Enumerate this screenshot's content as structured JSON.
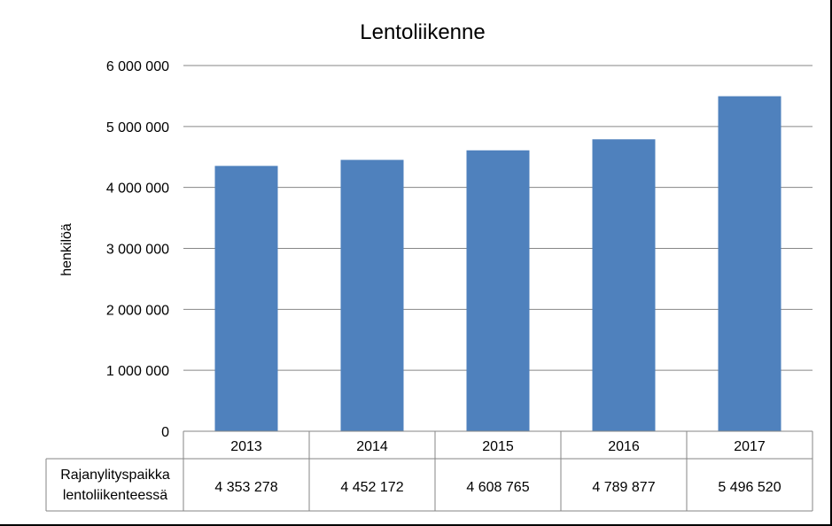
{
  "chart_data": {
    "type": "bar",
    "title": "Lentoliikenne",
    "ylabel": "henkilöä",
    "xlabel": "",
    "categories": [
      "2013",
      "2014",
      "2015",
      "2016",
      "2017"
    ],
    "series": [
      {
        "name": "Rajanylityspaikka lentoliikenteessä",
        "values": [
          4353278,
          4452172,
          4608765,
          4789877,
          5496520
        ],
        "value_labels": [
          "4 353 278",
          "4 452 172",
          "4 608 765",
          "4 789 877",
          "5 496 520"
        ],
        "color": "#4f81bd"
      }
    ],
    "ylim": [
      0,
      6000000
    ],
    "yticks": [
      0,
      1000000,
      2000000,
      3000000,
      4000000,
      5000000,
      6000000
    ],
    "ytick_labels": [
      "0",
      "1 000 000",
      "2 000 000",
      "3 000 000",
      "4 000 000",
      "5 000 000",
      "6 000 000"
    ],
    "grid": true,
    "data_table": true,
    "table_row_header": [
      "Rajanylityspaikka",
      "lentoliikenteessä"
    ]
  }
}
